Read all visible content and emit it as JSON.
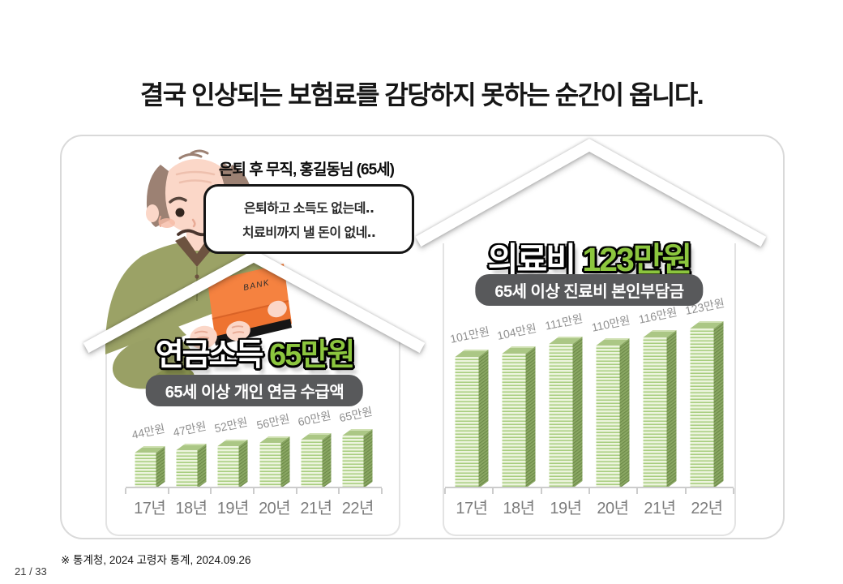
{
  "slide": {
    "title": "결국 인상되는 보험료를 감당하지 못하는 순간이 옵니다.",
    "source": "※ 통계청, 2024 고령자 통계, 2024.09.26",
    "page_number": "21 / 33"
  },
  "character": {
    "name_label": "은퇴 후 무직, 홍길동님 (65세)",
    "speech_line1": "은퇴하고 소득도 없는데‥",
    "speech_line2": "치료비까지 낼 돈이 없네‥",
    "bank_label": "BANK"
  },
  "houses": {
    "pension": {
      "title_text": "연금소득",
      "title_value": "65만원",
      "badge": "65세 이상 개인 연금 수급액"
    },
    "medical": {
      "title_text": "의료비",
      "title_value": "123만원",
      "badge": "65세 이상 진료비 본인부담금"
    }
  },
  "chart_data": [
    {
      "type": "bar",
      "name": "pension-income",
      "title": "연금소득 65만원",
      "subtitle": "65세 이상 개인 연금 수급액",
      "categories": [
        "17년",
        "18년",
        "19년",
        "20년",
        "21년",
        "22년"
      ],
      "values": [
        44,
        47,
        52,
        56,
        60,
        65
      ],
      "value_labels": [
        "44만원",
        "47만원",
        "52만원",
        "56만원",
        "60만원",
        "65만원"
      ],
      "unit": "만원",
      "ylim": [
        0,
        70
      ],
      "grid": false,
      "legend": "none",
      "bar_style": "3d-money-stack",
      "bar_color": "#a7cd7e"
    },
    {
      "type": "bar",
      "name": "medical-expense",
      "title": "의료비 123만원",
      "subtitle": "65세 이상 진료비 본인부담금",
      "categories": [
        "17년",
        "18년",
        "19년",
        "20년",
        "21년",
        "22년"
      ],
      "values": [
        101,
        104,
        111,
        110,
        116,
        123
      ],
      "value_labels": [
        "101만원",
        "104만원",
        "111만원",
        "110만원",
        "116만원",
        "123만원"
      ],
      "unit": "만원",
      "ylim": [
        0,
        130
      ],
      "grid": false,
      "legend": "none",
      "bar_style": "3d-money-stack",
      "bar_color": "#a7cd7e"
    }
  ],
  "colors": {
    "accent_green": "#8cc63e",
    "bar_front_light": "#ecf4dd",
    "bar_front_stripe": "#a7cd7e",
    "bar_side": "#7d9a57",
    "badge_bg": "#58595b",
    "paper_orange": "#f58240"
  }
}
